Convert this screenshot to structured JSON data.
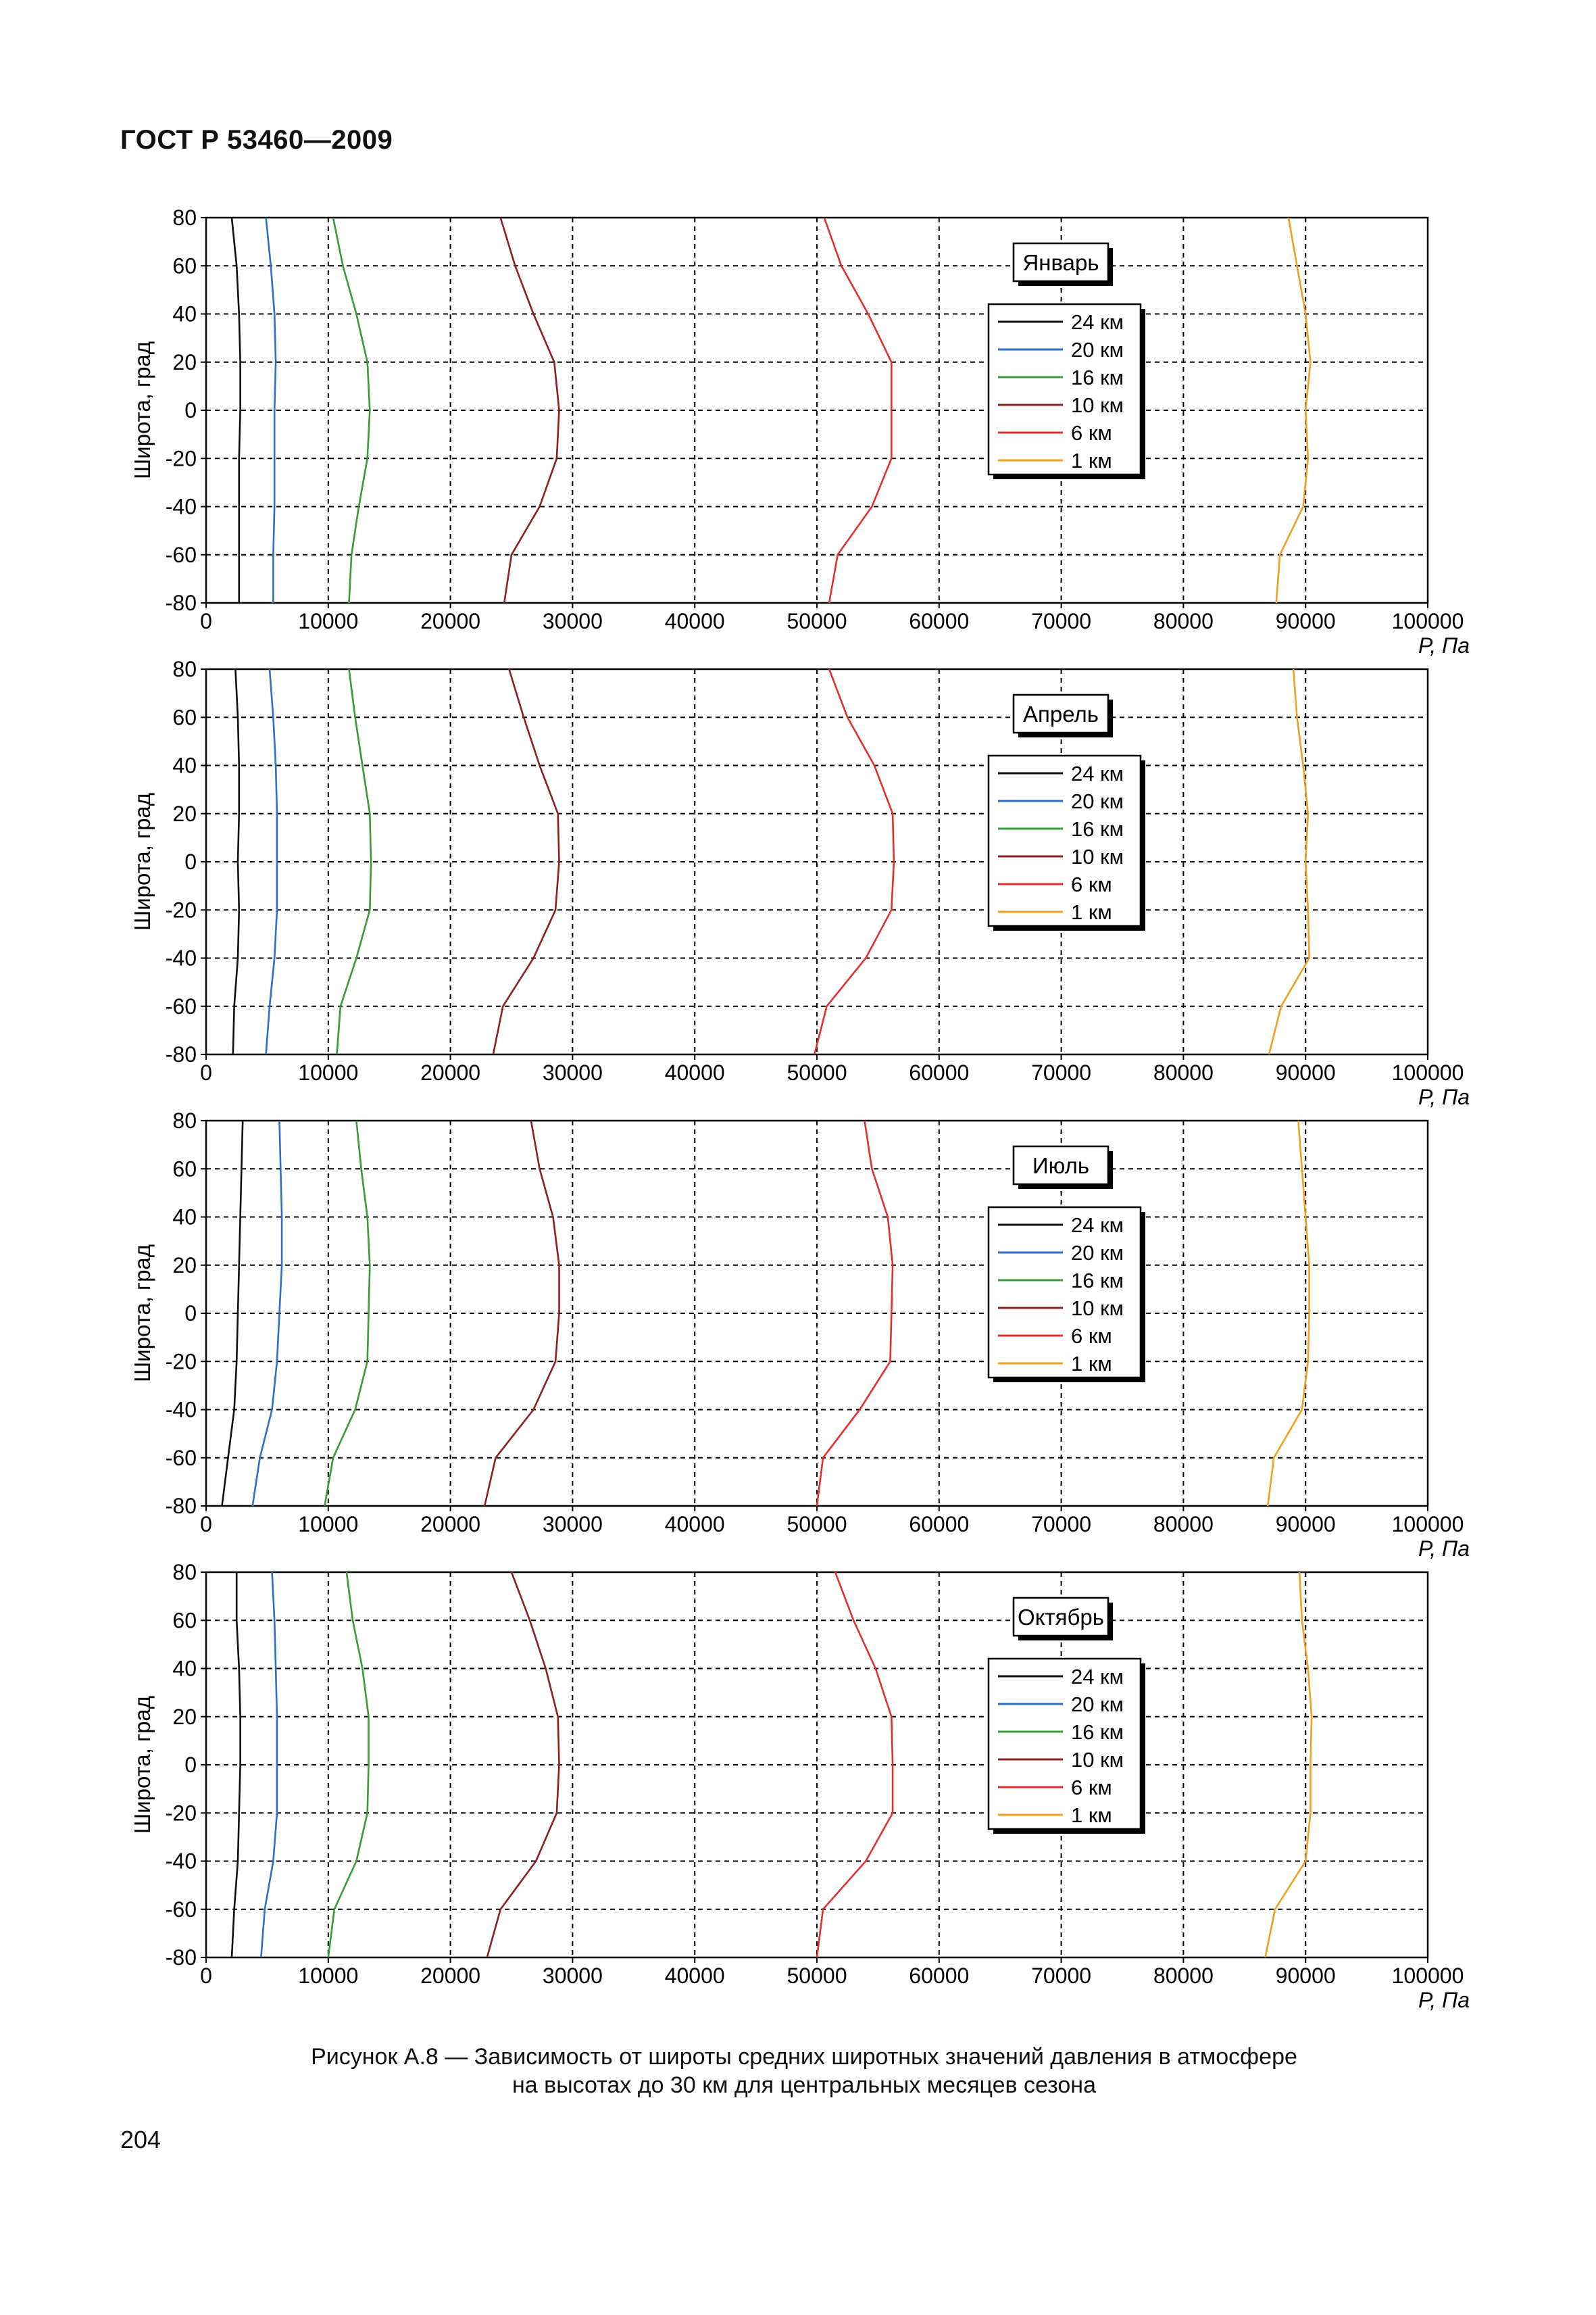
{
  "document": {
    "header": "ГОСТ Р 53460—2009",
    "caption_line1": "Рисунок А.8 — Зависимость от широты средних широтных значений давления в атмосфере",
    "caption_line2": "на высотах до 30 км для центральных месяцев сезона",
    "page_number": "204"
  },
  "colors": {
    "24 км": "#111111",
    "20 км": "#2f6fc4",
    "16 км": "#3a9a3a",
    "10 км": "#8a2020",
    "6 км": "#e03030",
    "1 км": "#f0a020"
  },
  "chart_data": [
    {
      "type": "line",
      "title": "Январь",
      "xlabel": "P, Па",
      "ylabel": "Широта, град",
      "xlim": [
        0,
        100000
      ],
      "ylim": [
        -80,
        80
      ],
      "xticks": [
        "0",
        "10000",
        "20000",
        "30000",
        "40000",
        "50000",
        "60000",
        "70000",
        "80000",
        "90000",
        "100000"
      ],
      "yticks": [
        "80",
        "60",
        "40",
        "20",
        "0",
        "-20",
        "-40",
        "-60",
        "-80"
      ],
      "grid": true,
      "legend_position": "right",
      "y": [
        80,
        60,
        40,
        20,
        0,
        -20,
        -40,
        -60,
        -80
      ],
      "series": [
        {
          "name": "24 км",
          "x": [
            2100,
            2500,
            2700,
            2800,
            2800,
            2700,
            2700,
            2700,
            2700
          ]
        },
        {
          "name": "20 км",
          "x": [
            4900,
            5300,
            5600,
            5700,
            5600,
            5600,
            5600,
            5500,
            5500
          ]
        },
        {
          "name": "16 км",
          "x": [
            10400,
            11200,
            12300,
            13200,
            13400,
            13200,
            12500,
            11900,
            11700
          ]
        },
        {
          "name": "10 км",
          "x": [
            24100,
            25300,
            26800,
            28500,
            28900,
            28700,
            27300,
            25000,
            24400
          ]
        },
        {
          "name": "6 км",
          "x": [
            50600,
            52000,
            54200,
            56100,
            56100,
            56100,
            54500,
            51700,
            51000
          ]
        },
        {
          "name": "1 км",
          "x": [
            88600,
            89300,
            90000,
            90400,
            90000,
            90200,
            89800,
            87900,
            87600
          ]
        }
      ]
    },
    {
      "type": "line",
      "title": "Апрель",
      "xlabel": "P, Па",
      "ylabel": "Широта, град",
      "xlim": [
        0,
        100000
      ],
      "ylim": [
        -80,
        80
      ],
      "xticks": [
        "0",
        "10000",
        "20000",
        "30000",
        "40000",
        "50000",
        "60000",
        "70000",
        "80000",
        "90000",
        "100000"
      ],
      "yticks": [
        "80",
        "60",
        "40",
        "20",
        "0",
        "-20",
        "-40",
        "-60",
        "-80"
      ],
      "grid": true,
      "legend_position": "right",
      "y": [
        80,
        60,
        40,
        20,
        0,
        -20,
        -40,
        -60,
        -80
      ],
      "series": [
        {
          "name": "24 км",
          "x": [
            2400,
            2600,
            2700,
            2700,
            2600,
            2700,
            2600,
            2300,
            2200
          ]
        },
        {
          "name": "20 км",
          "x": [
            5200,
            5500,
            5700,
            5800,
            5800,
            5800,
            5600,
            5200,
            4900
          ]
        },
        {
          "name": "16 км",
          "x": [
            11700,
            12200,
            12800,
            13400,
            13500,
            13400,
            12300,
            11000,
            10700
          ]
        },
        {
          "name": "10 км",
          "x": [
            24800,
            26000,
            27300,
            28800,
            28900,
            28600,
            26800,
            24300,
            23500
          ]
        },
        {
          "name": "6 км",
          "x": [
            51000,
            52500,
            54700,
            56200,
            56300,
            56100,
            54000,
            50800,
            49800
          ]
        },
        {
          "name": "1 км",
          "x": [
            89000,
            89300,
            89800,
            90200,
            90000,
            90200,
            90300,
            88000,
            87000
          ]
        }
      ]
    },
    {
      "type": "line",
      "title": "Июль",
      "xlabel": "P, Па",
      "ylabel": "Широта, град",
      "xlim": [
        0,
        100000
      ],
      "ylim": [
        -80,
        80
      ],
      "xticks": [
        "0",
        "10000",
        "20000",
        "30000",
        "40000",
        "50000",
        "60000",
        "70000",
        "80000",
        "90000",
        "100000"
      ],
      "yticks": [
        "80",
        "60",
        "40",
        "20",
        "0",
        "-20",
        "-40",
        "-60",
        "-80"
      ],
      "grid": true,
      "legend_position": "right",
      "y": [
        80,
        60,
        40,
        20,
        0,
        -20,
        -40,
        -60,
        -80
      ],
      "series": [
        {
          "name": "24 км",
          "x": [
            3000,
            2900,
            2800,
            2700,
            2600,
            2500,
            2300,
            1800,
            1300
          ]
        },
        {
          "name": "20 км",
          "x": [
            6000,
            6100,
            6200,
            6200,
            6000,
            5800,
            5400,
            4400,
            3800
          ]
        },
        {
          "name": "16 км",
          "x": [
            12300,
            12700,
            13200,
            13400,
            13300,
            13200,
            12200,
            10400,
            9700
          ]
        },
        {
          "name": "10 км",
          "x": [
            26600,
            27300,
            28400,
            28900,
            28900,
            28600,
            26800,
            23700,
            22800
          ]
        },
        {
          "name": "6 км",
          "x": [
            53900,
            54500,
            55800,
            56200,
            56100,
            56000,
            53500,
            50500,
            50000
          ]
        },
        {
          "name": "1 км",
          "x": [
            89400,
            89700,
            90000,
            90300,
            90300,
            90200,
            89700,
            87400,
            86900
          ]
        }
      ]
    },
    {
      "type": "line",
      "title": "Октябрь",
      "xlabel": "P, Па",
      "ylabel": "Широта, град",
      "xlim": [
        0,
        100000
      ],
      "ylim": [
        -80,
        80
      ],
      "xticks": [
        "0",
        "10000",
        "20000",
        "30000",
        "40000",
        "50000",
        "60000",
        "70000",
        "80000",
        "90000",
        "100000"
      ],
      "yticks": [
        "80",
        "60",
        "40",
        "20",
        "0",
        "-20",
        "-40",
        "-60",
        "-80"
      ],
      "grid": true,
      "legend_position": "right",
      "y": [
        80,
        60,
        40,
        20,
        0,
        -20,
        -40,
        -60,
        -80
      ],
      "series": [
        {
          "name": "24 км",
          "x": [
            2500,
            2500,
            2700,
            2800,
            2800,
            2700,
            2600,
            2300,
            2100
          ]
        },
        {
          "name": "20 км",
          "x": [
            5400,
            5600,
            5700,
            5800,
            5800,
            5800,
            5500,
            4800,
            4500
          ]
        },
        {
          "name": "16 км",
          "x": [
            11500,
            12000,
            12800,
            13300,
            13300,
            13200,
            12300,
            10500,
            10000
          ]
        },
        {
          "name": "10 км",
          "x": [
            25000,
            26500,
            27800,
            28800,
            28900,
            28700,
            27000,
            24100,
            23000
          ]
        },
        {
          "name": "6 км",
          "x": [
            51500,
            53000,
            54800,
            56100,
            56200,
            56200,
            54000,
            50500,
            50000
          ]
        },
        {
          "name": "1 км",
          "x": [
            89500,
            89700,
            90200,
            90500,
            90400,
            90400,
            90000,
            87500,
            86700
          ]
        }
      ]
    }
  ]
}
